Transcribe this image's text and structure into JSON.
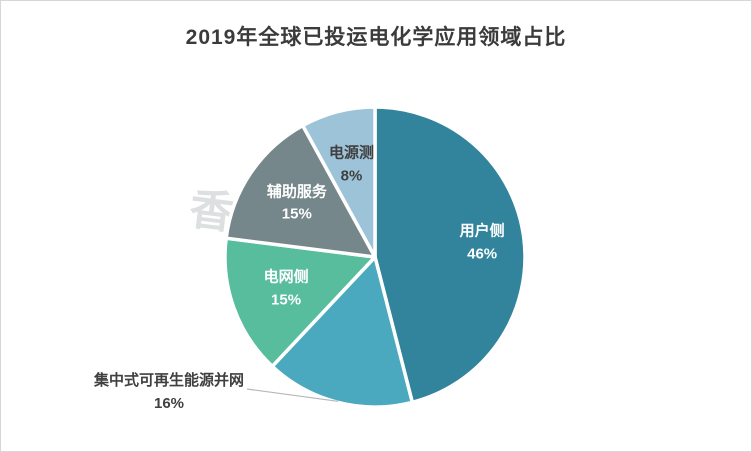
{
  "title": "2019年全球已投运电化学应用领域占比",
  "watermark": "香橙会研究院",
  "chart_data": {
    "type": "pie",
    "title": "2019年全球已投运电化学应用领域占比",
    "start_angle_deg": 0,
    "direction": "clockwise",
    "legend_position": "none",
    "slices": [
      {
        "label": "用户侧",
        "value": 46,
        "color": "#31849B",
        "label_color": "#ffffff",
        "label_inside": true
      },
      {
        "label": "集中式可再生能源并网",
        "value": 16,
        "color": "#4AA9BE",
        "label_color": "#404040",
        "label_inside": false
      },
      {
        "label": "电网侧",
        "value": 15,
        "color": "#57BD9C",
        "label_color": "#ffffff",
        "label_inside": true
      },
      {
        "label": "辅助服务",
        "value": 15,
        "color": "#75878A",
        "label_color": "#ffffff",
        "label_inside": true
      },
      {
        "label": "电源测",
        "value": 8,
        "color": "#9DC3D8",
        "label_color": "#404040",
        "label_inside": true
      }
    ],
    "leader_line_color": "#b7b7b7"
  }
}
